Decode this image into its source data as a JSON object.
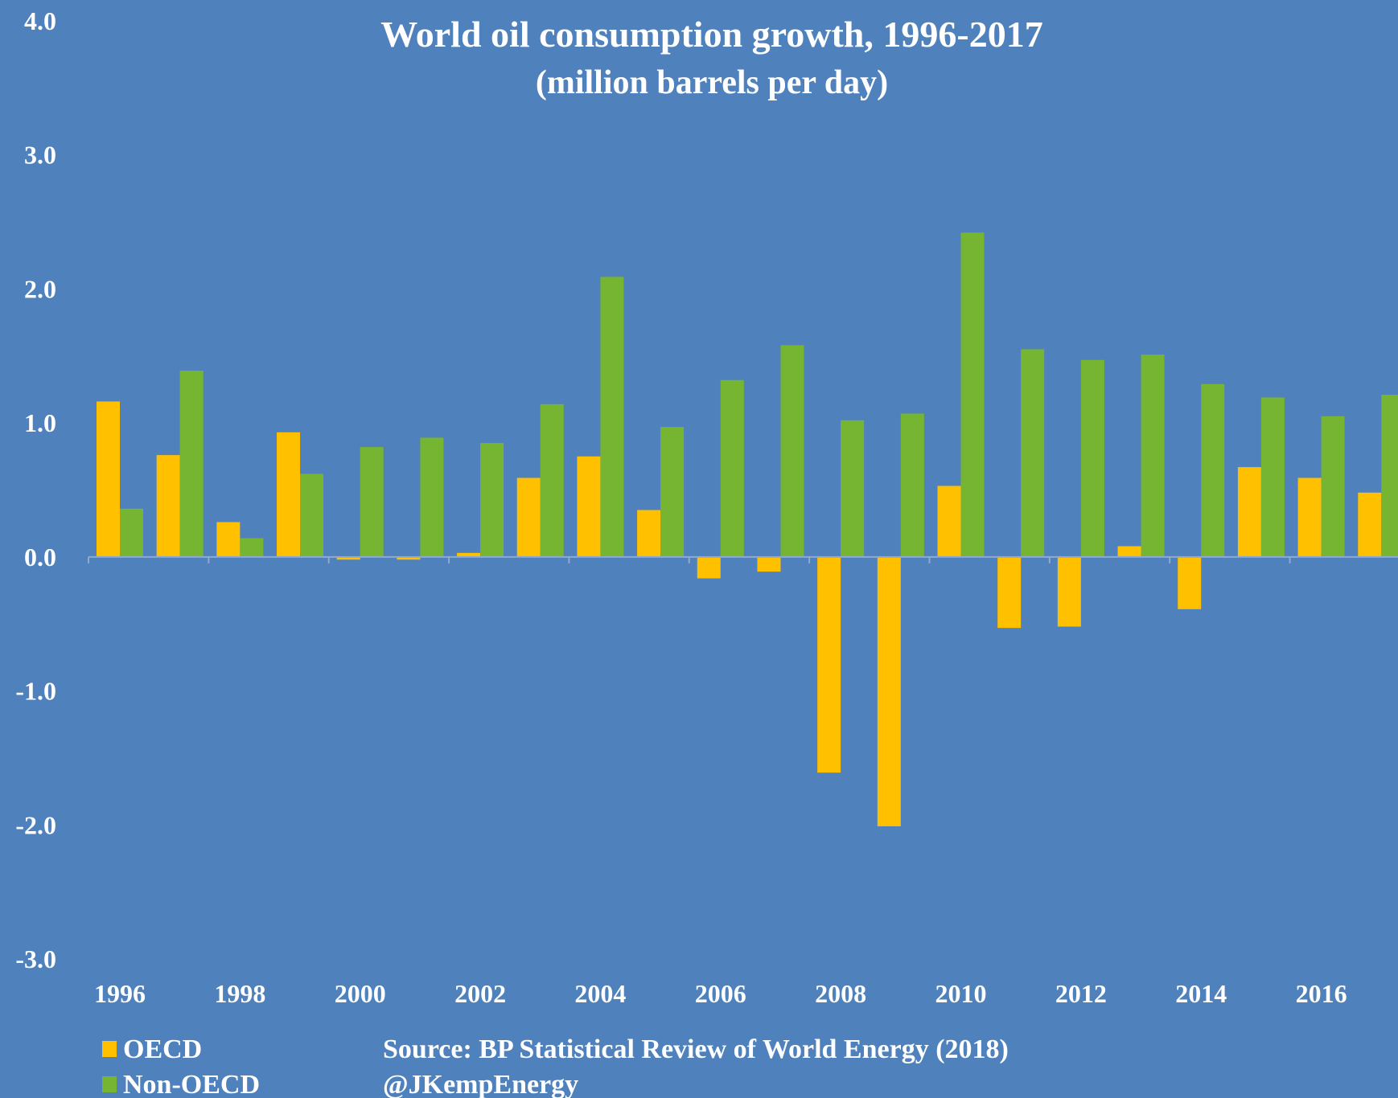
{
  "chart_data": {
    "type": "bar",
    "title": "World oil consumption growth, 1996-2017",
    "subtitle": "(million barrels per day)",
    "xlabel": "",
    "ylabel": "",
    "categories": [
      "1996",
      "1997",
      "1998",
      "1999",
      "2000",
      "2001",
      "2002",
      "2003",
      "2004",
      "2005",
      "2006",
      "2007",
      "2008",
      "2009",
      "2010",
      "2011",
      "2012",
      "2013",
      "2014",
      "2015",
      "2016",
      "2017"
    ],
    "x_tick_labels": [
      "1996",
      "1998",
      "2000",
      "2002",
      "2004",
      "2006",
      "2008",
      "2010",
      "2012",
      "2014",
      "2016"
    ],
    "y_tick_labels": [
      "4.0",
      "3.0",
      "2.0",
      "1.0",
      "0.0",
      "-1.0",
      "-2.0",
      "-3.0"
    ],
    "ylim": [
      -3.0,
      4.0
    ],
    "grid": false,
    "legend_position": "bottom-left",
    "series": [
      {
        "name": "OECD",
        "color": "#ffc000",
        "values": [
          1.16,
          0.76,
          0.26,
          0.93,
          -0.02,
          -0.02,
          0.03,
          0.59,
          0.75,
          0.35,
          -0.16,
          -0.11,
          -1.61,
          -2.01,
          0.53,
          -0.53,
          -0.52,
          0.08,
          -0.39,
          0.67,
          0.59,
          0.48
        ]
      },
      {
        "name": "Non-OECD",
        "color": "#76b531",
        "values": [
          0.36,
          1.39,
          0.14,
          0.62,
          0.82,
          0.89,
          0.85,
          1.14,
          2.09,
          0.97,
          1.32,
          1.58,
          1.02,
          1.07,
          2.42,
          1.55,
          1.47,
          1.51,
          1.29,
          1.19,
          1.05,
          1.21
        ]
      }
    ]
  },
  "source": {
    "line1": "Source: BP Statistical Review of World Energy (2018)",
    "line2": "@JKempEnergy"
  }
}
